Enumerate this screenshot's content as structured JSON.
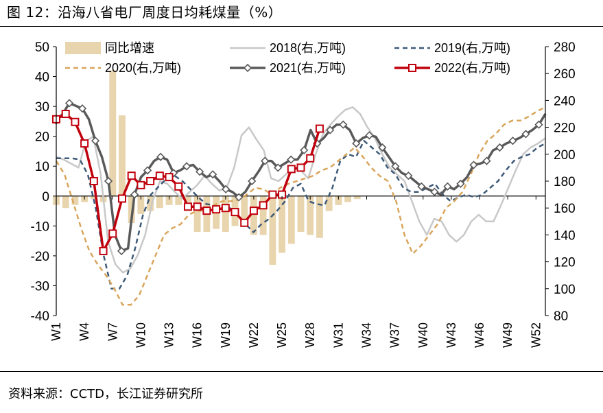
{
  "figure": {
    "title": "图 12：沿海八省电厂周度日均耗煤量（%）",
    "source": "资料来源：CCTD，长江证券研究所"
  },
  "chart_data": {
    "type": "line",
    "left_axis": {
      "ticks": [
        50,
        40,
        30,
        20,
        10,
        0,
        -10,
        -20,
        -30,
        -40
      ],
      "ylim": [
        -40,
        50
      ]
    },
    "right_axis": {
      "ticks": [
        280,
        260,
        240,
        220,
        200,
        180,
        160,
        140,
        120,
        100,
        80
      ],
      "ylim": [
        80,
        280
      ]
    },
    "x_ticks": [
      "W1",
      "W4",
      "W7",
      "W10",
      "W13",
      "W16",
      "W19",
      "W22",
      "W25",
      "W28",
      "W31",
      "W34",
      "W37",
      "W40",
      "W43",
      "W46",
      "W49",
      "W52"
    ],
    "weeks": 53,
    "legend_placement": "top",
    "bars": {
      "name": "同比增速",
      "axis": "left",
      "color": "#e8d5ad",
      "values": [
        -3,
        -4,
        -3,
        -2,
        -1,
        -2,
        42,
        27,
        -9,
        -6,
        -5,
        -4,
        -3,
        -3,
        -2,
        -12,
        -12,
        -11,
        -12,
        -10,
        -9,
        -13,
        -13,
        -23,
        -19,
        -16,
        -12,
        -13,
        -14,
        -5,
        -3,
        -2,
        -1
      ]
    },
    "series": [
      {
        "name": "2018(右,万吨)",
        "axis": "right",
        "color": "#c8c8c8",
        "style": "solid",
        "width": 2.5,
        "values": [
          198,
          196,
          193,
          190,
          210,
          213,
          185,
          135,
          118,
          112,
          115,
          125,
          140,
          165,
          180,
          178,
          172,
          167,
          172,
          177,
          184,
          178,
          173,
          175,
          190,
          214,
          220,
          211,
          203,
          182,
          180,
          185,
          190,
          188,
          182,
          200,
          215,
          222,
          228,
          233,
          235,
          230,
          220,
          212,
          200,
          190,
          185,
          180,
          165,
          150,
          140,
          152,
          150,
          140,
          135,
          140,
          150,
          155,
          150,
          150,
          162,
          175,
          188,
          200,
          205,
          208,
          212
        ]
      },
      {
        "name": "2019(右,万吨)",
        "axis": "right",
        "color": "#3e5a78",
        "style": "dash",
        "width": 2.5,
        "values": [
          197,
          197,
          197,
          196,
          185,
          160,
          125,
          100,
          100,
          110,
          130,
          155,
          170,
          176,
          182,
          184,
          180,
          174,
          168,
          163,
          162,
          160,
          160,
          155,
          148,
          142,
          148,
          152,
          158,
          165,
          175,
          178,
          165,
          163,
          162,
          175,
          195,
          200,
          198,
          210,
          205,
          200,
          190,
          185,
          175,
          172,
          172,
          175,
          178,
          170,
          165,
          168,
          170,
          168,
          170,
          175,
          180,
          188,
          195,
          198,
          200,
          205,
          208
        ]
      },
      {
        "name": "2020(右,万吨)",
        "axis": "right",
        "color": "#d9a55c",
        "style": "dash",
        "width": 2.5,
        "values": [
          195,
          185,
          165,
          145,
          128,
          118,
          110,
          100,
          88,
          88,
          95,
          110,
          125,
          140,
          145,
          148,
          155,
          158,
          158,
          162,
          165,
          165,
          166,
          170,
          175,
          174,
          170,
          175,
          178,
          180,
          182,
          184,
          188,
          190,
          195,
          200,
          205,
          198,
          190,
          184,
          180,
          165,
          140,
          126,
          132,
          140,
          148,
          160,
          165,
          172,
          185,
          200,
          210,
          215,
          222,
          225,
          225,
          228,
          232,
          235
        ]
      },
      {
        "name": "2021(右,万吨)",
        "axis": "right",
        "color": "#595959",
        "style": "solid",
        "width": 3.5,
        "marker": "diamond",
        "values": [
          225,
          230,
          238,
          236,
          234,
          226,
          210,
          198,
          180,
          140,
          128,
          130,
          170,
          183,
          188,
          195,
          198,
          196,
          186,
          188,
          191,
          192,
          187,
          183,
          185,
          180,
          174,
          172,
          168,
          172,
          180,
          187,
          195,
          195,
          190,
          193,
          196,
          196,
          203,
          218,
          208,
          212,
          218,
          222,
          222,
          218,
          208,
          212,
          214,
          213,
          205,
          198,
          191,
          186,
          184,
          180,
          176,
          174,
          172,
          170,
          176,
          174,
          178,
          183,
          192,
          193,
          195,
          203,
          205,
          208,
          210,
          212,
          215,
          218,
          222,
          230
        ]
      },
      {
        "name": "2022(右,万吨)",
        "axis": "right",
        "color": "#c0000c",
        "style": "solid",
        "width": 3.5,
        "marker": "square",
        "values": [
          226,
          230,
          224,
          208,
          180,
          128,
          141,
          167,
          184,
          177,
          180,
          184,
          183,
          176,
          161,
          161,
          158,
          159,
          160,
          157,
          149,
          158,
          162,
          170,
          170,
          189,
          190,
          197,
          219
        ]
      }
    ]
  }
}
